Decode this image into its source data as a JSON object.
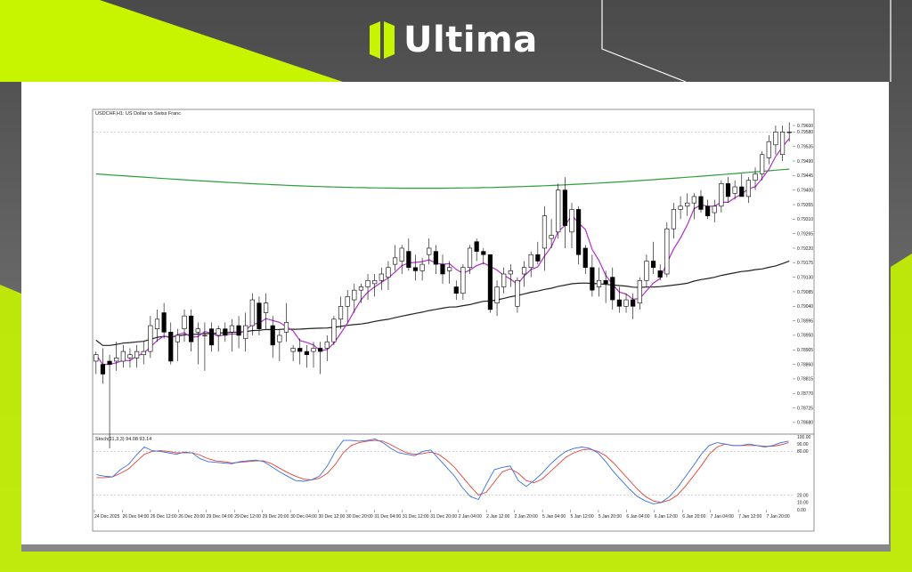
{
  "brand": {
    "name": "Ultima",
    "accent_color": "#c7f500",
    "logo_icon": "ultima-logo-icon"
  },
  "chart_data": {
    "type": "candlestick",
    "title": "USDCHF,H1: US Dollar vs Swiss Franc",
    "symbol": "USDCHF,H1",
    "price_labels": [
      "0.79600",
      "0.79580",
      "0.79535",
      "0.79490",
      "0.79445",
      "0.79400",
      "0.79355",
      "0.79310",
      "0.79265",
      "0.79220",
      "0.79175",
      "0.79130",
      "0.79085",
      "0.79040",
      "0.78995",
      "0.78950",
      "0.78905",
      "0.78860",
      "0.78815",
      "0.78770",
      "0.78725",
      "0.78680"
    ],
    "price_ylim": [
      0.78655,
      0.79625
    ],
    "current_price": "0.79580",
    "time_labels": [
      "24 Dec 2025",
      "26 Dec 04:00",
      "26 Dec 12:00",
      "26 Dec 20:00",
      "29 Dec 04:00",
      "29 Dec 12:00",
      "29 Dec 20:00",
      "30 Dec 04:00",
      "30 Dec 12:00",
      "30 Dec 20:00",
      "31 Dec 04:00",
      "31 Dec 12:00",
      "31 Dec 20:00",
      "2 Jan 04:00",
      "2 Jan 12:00",
      "2 Jan 20:00",
      "5 Jan 04:00",
      "5 Jan 12:00",
      "5 Jan 20:00",
      "6 Jan 04:00",
      "6 Jan 12:00",
      "6 Jan 20:00",
      "7 Jan 04:00",
      "7 Jan 12:00",
      "7 Jan 20:00"
    ],
    "candles": [
      {
        "o": 0.7887,
        "h": 0.789,
        "l": 0.7883,
        "c": 0.7889
      },
      {
        "o": 0.7886,
        "h": 0.7891,
        "l": 0.788,
        "c": 0.7883
      },
      {
        "o": 0.7887,
        "h": 0.7889,
        "l": 0.786,
        "c": 0.7886
      },
      {
        "o": 0.7887,
        "h": 0.7893,
        "l": 0.7884,
        "c": 0.7888
      },
      {
        "o": 0.7887,
        "h": 0.7892,
        "l": 0.7885,
        "c": 0.789
      },
      {
        "o": 0.7888,
        "h": 0.7891,
        "l": 0.7885,
        "c": 0.7889
      },
      {
        "o": 0.7888,
        "h": 0.7892,
        "l": 0.7885,
        "c": 0.789
      },
      {
        "o": 0.7889,
        "h": 0.7893,
        "l": 0.7886,
        "c": 0.789
      },
      {
        "o": 0.789,
        "h": 0.7901,
        "l": 0.7888,
        "c": 0.7898
      },
      {
        "o": 0.7897,
        "h": 0.7903,
        "l": 0.7893,
        "c": 0.79
      },
      {
        "o": 0.7902,
        "h": 0.7905,
        "l": 0.7894,
        "c": 0.7896
      },
      {
        "o": 0.7896,
        "h": 0.7899,
        "l": 0.7886,
        "c": 0.7887
      },
      {
        "o": 0.7893,
        "h": 0.7897,
        "l": 0.7887,
        "c": 0.7895
      },
      {
        "o": 0.7897,
        "h": 0.7903,
        "l": 0.7893,
        "c": 0.7901
      },
      {
        "o": 0.7901,
        "h": 0.7903,
        "l": 0.789,
        "c": 0.7893
      },
      {
        "o": 0.7896,
        "h": 0.7899,
        "l": 0.7886,
        "c": 0.7897
      },
      {
        "o": 0.7895,
        "h": 0.7899,
        "l": 0.7884,
        "c": 0.7895
      },
      {
        "o": 0.7897,
        "h": 0.7899,
        "l": 0.789,
        "c": 0.7892
      },
      {
        "o": 0.7895,
        "h": 0.7898,
        "l": 0.789,
        "c": 0.7897
      },
      {
        "o": 0.7897,
        "h": 0.7899,
        "l": 0.7893,
        "c": 0.7895
      },
      {
        "o": 0.7896,
        "h": 0.79,
        "l": 0.789,
        "c": 0.7898
      },
      {
        "o": 0.7898,
        "h": 0.7901,
        "l": 0.7891,
        "c": 0.7895
      },
      {
        "o": 0.7894,
        "h": 0.7902,
        "l": 0.789,
        "c": 0.7898
      },
      {
        "o": 0.7898,
        "h": 0.7908,
        "l": 0.7895,
        "c": 0.7906
      },
      {
        "o": 0.7905,
        "h": 0.7907,
        "l": 0.7895,
        "c": 0.7897
      },
      {
        "o": 0.7902,
        "h": 0.7908,
        "l": 0.7897,
        "c": 0.7905
      },
      {
        "o": 0.7898,
        "h": 0.7901,
        "l": 0.7888,
        "c": 0.7892
      },
      {
        "o": 0.7893,
        "h": 0.7897,
        "l": 0.7887,
        "c": 0.7895
      },
      {
        "o": 0.7896,
        "h": 0.7905,
        "l": 0.7893,
        "c": 0.7899
      },
      {
        "o": 0.789,
        "h": 0.7892,
        "l": 0.7887,
        "c": 0.7891
      },
      {
        "o": 0.7891,
        "h": 0.7894,
        "l": 0.7886,
        "c": 0.789
      },
      {
        "o": 0.789,
        "h": 0.7892,
        "l": 0.7885,
        "c": 0.7889
      },
      {
        "o": 0.789,
        "h": 0.7893,
        "l": 0.7885,
        "c": 0.7891
      },
      {
        "o": 0.7891,
        "h": 0.7893,
        "l": 0.7883,
        "c": 0.789
      },
      {
        "o": 0.7891,
        "h": 0.7895,
        "l": 0.7887,
        "c": 0.7893
      },
      {
        "o": 0.7893,
        "h": 0.7901,
        "l": 0.7892,
        "c": 0.79
      },
      {
        "o": 0.79,
        "h": 0.7907,
        "l": 0.7897,
        "c": 0.7904
      },
      {
        "o": 0.7904,
        "h": 0.7909,
        "l": 0.7899,
        "c": 0.7907
      },
      {
        "o": 0.7906,
        "h": 0.7911,
        "l": 0.7902,
        "c": 0.7909
      },
      {
        "o": 0.7909,
        "h": 0.7911,
        "l": 0.7905,
        "c": 0.791
      },
      {
        "o": 0.791,
        "h": 0.7914,
        "l": 0.7906,
        "c": 0.7912
      },
      {
        "o": 0.7911,
        "h": 0.7914,
        "l": 0.7907,
        "c": 0.7912
      },
      {
        "o": 0.7912,
        "h": 0.7916,
        "l": 0.7909,
        "c": 0.7914
      },
      {
        "o": 0.7913,
        "h": 0.7918,
        "l": 0.7909,
        "c": 0.7916
      },
      {
        "o": 0.7917,
        "h": 0.7923,
        "l": 0.7915,
        "c": 0.7919
      },
      {
        "o": 0.7918,
        "h": 0.7923,
        "l": 0.7914,
        "c": 0.7922
      },
      {
        "o": 0.7921,
        "h": 0.7925,
        "l": 0.7915,
        "c": 0.7916
      },
      {
        "o": 0.7916,
        "h": 0.792,
        "l": 0.7912,
        "c": 0.7915
      },
      {
        "o": 0.7915,
        "h": 0.7919,
        "l": 0.7912,
        "c": 0.7917
      },
      {
        "o": 0.792,
        "h": 0.7925,
        "l": 0.7917,
        "c": 0.7922
      },
      {
        "o": 0.7921,
        "h": 0.7923,
        "l": 0.7914,
        "c": 0.7917
      },
      {
        "o": 0.7917,
        "h": 0.792,
        "l": 0.7911,
        "c": 0.7914
      },
      {
        "o": 0.7915,
        "h": 0.7918,
        "l": 0.7911,
        "c": 0.7916
      },
      {
        "o": 0.791,
        "h": 0.7912,
        "l": 0.7906,
        "c": 0.7908
      },
      {
        "o": 0.7908,
        "h": 0.7917,
        "l": 0.7906,
        "c": 0.7916
      },
      {
        "o": 0.7916,
        "h": 0.7923,
        "l": 0.7914,
        "c": 0.7922
      },
      {
        "o": 0.7924,
        "h": 0.7925,
        "l": 0.7918,
        "c": 0.7921
      },
      {
        "o": 0.7921,
        "h": 0.7922,
        "l": 0.7917,
        "c": 0.792
      },
      {
        "o": 0.792,
        "h": 0.792,
        "l": 0.7902,
        "c": 0.7903
      },
      {
        "o": 0.7905,
        "h": 0.7912,
        "l": 0.7901,
        "c": 0.791
      },
      {
        "o": 0.791,
        "h": 0.7916,
        "l": 0.7908,
        "c": 0.7914
      },
      {
        "o": 0.7914,
        "h": 0.7917,
        "l": 0.791,
        "c": 0.7915
      },
      {
        "o": 0.7904,
        "h": 0.7913,
        "l": 0.7902,
        "c": 0.7912
      },
      {
        "o": 0.7914,
        "h": 0.7918,
        "l": 0.791,
        "c": 0.7916
      },
      {
        "o": 0.7916,
        "h": 0.7921,
        "l": 0.7913,
        "c": 0.792
      },
      {
        "o": 0.792,
        "h": 0.7924,
        "l": 0.7917,
        "c": 0.7918
      },
      {
        "o": 0.7922,
        "h": 0.7935,
        "l": 0.7915,
        "c": 0.7932
      },
      {
        "o": 0.7925,
        "h": 0.7931,
        "l": 0.7922,
        "c": 0.7926
      },
      {
        "o": 0.7927,
        "h": 0.7942,
        "l": 0.7925,
        "c": 0.794
      },
      {
        "o": 0.794,
        "h": 0.7944,
        "l": 0.7922,
        "c": 0.7929
      },
      {
        "o": 0.7927,
        "h": 0.7936,
        "l": 0.7922,
        "c": 0.7934
      },
      {
        "o": 0.7934,
        "h": 0.7935,
        "l": 0.7917,
        "c": 0.792
      },
      {
        "o": 0.7922,
        "h": 0.7923,
        "l": 0.7914,
        "c": 0.7916
      },
      {
        "o": 0.7916,
        "h": 0.792,
        "l": 0.7907,
        "c": 0.7909
      },
      {
        "o": 0.791,
        "h": 0.7916,
        "l": 0.7907,
        "c": 0.7912
      },
      {
        "o": 0.7912,
        "h": 0.7915,
        "l": 0.7905,
        "c": 0.7911
      },
      {
        "o": 0.7913,
        "h": 0.7916,
        "l": 0.7903,
        "c": 0.7906
      },
      {
        "o": 0.7906,
        "h": 0.791,
        "l": 0.7902,
        "c": 0.7904
      },
      {
        "o": 0.7904,
        "h": 0.7908,
        "l": 0.7902,
        "c": 0.7906
      },
      {
        "o": 0.7906,
        "h": 0.7908,
        "l": 0.79,
        "c": 0.7904
      },
      {
        "o": 0.7905,
        "h": 0.7913,
        "l": 0.7903,
        "c": 0.7912
      },
      {
        "o": 0.7912,
        "h": 0.792,
        "l": 0.791,
        "c": 0.7918
      },
      {
        "o": 0.7918,
        "h": 0.7924,
        "l": 0.7914,
        "c": 0.7916
      },
      {
        "o": 0.7915,
        "h": 0.7917,
        "l": 0.7912,
        "c": 0.7913
      },
      {
        "o": 0.7914,
        "h": 0.793,
        "l": 0.7913,
        "c": 0.7928
      },
      {
        "o": 0.7928,
        "h": 0.7936,
        "l": 0.7925,
        "c": 0.7934
      },
      {
        "o": 0.7934,
        "h": 0.7938,
        "l": 0.7931,
        "c": 0.7935
      },
      {
        "o": 0.7935,
        "h": 0.7939,
        "l": 0.7932,
        "c": 0.7936
      },
      {
        "o": 0.7936,
        "h": 0.7939,
        "l": 0.7931,
        "c": 0.7938
      },
      {
        "o": 0.7938,
        "h": 0.794,
        "l": 0.7933,
        "c": 0.7934
      },
      {
        "o": 0.7935,
        "h": 0.7937,
        "l": 0.7931,
        "c": 0.7932
      },
      {
        "o": 0.7933,
        "h": 0.7937,
        "l": 0.793,
        "c": 0.7935
      },
      {
        "o": 0.7935,
        "h": 0.7943,
        "l": 0.7933,
        "c": 0.7942
      },
      {
        "o": 0.7942,
        "h": 0.7944,
        "l": 0.7936,
        "c": 0.7938
      },
      {
        "o": 0.7939,
        "h": 0.7943,
        "l": 0.7937,
        "c": 0.7941
      },
      {
        "o": 0.7941,
        "h": 0.7945,
        "l": 0.7938,
        "c": 0.7938
      },
      {
        "o": 0.7938,
        "h": 0.7944,
        "l": 0.7936,
        "c": 0.7943
      },
      {
        "o": 0.7943,
        "h": 0.7947,
        "l": 0.794,
        "c": 0.7945
      },
      {
        "o": 0.7945,
        "h": 0.7952,
        "l": 0.7943,
        "c": 0.7951
      },
      {
        "o": 0.795,
        "h": 0.7957,
        "l": 0.7948,
        "c": 0.7955
      },
      {
        "o": 0.7954,
        "h": 0.796,
        "l": 0.7951,
        "c": 0.7958
      },
      {
        "o": 0.7951,
        "h": 0.796,
        "l": 0.7949,
        "c": 0.7958
      },
      {
        "o": 0.7958,
        "h": 0.7961,
        "l": 0.7955,
        "c": 0.7958
      }
    ],
    "stochastic": {
      "label": "Stoch(11,3,3) 94.08 93.14",
      "levels": [
        "100.00",
        "90.00",
        "80.00",
        "20.00",
        "10.00",
        "0.00"
      ],
      "main": [
        48,
        46,
        45,
        55,
        62,
        75,
        86,
        81,
        80,
        78,
        76,
        79,
        78,
        70,
        66,
        65,
        64,
        63,
        66,
        67,
        68,
        66,
        59,
        52,
        46,
        40,
        39,
        41,
        46,
        60,
        80,
        95,
        95,
        94,
        95,
        97,
        92,
        84,
        78,
        76,
        74,
        80,
        82,
        70,
        58,
        46,
        30,
        18,
        14,
        35,
        55,
        58,
        60,
        40,
        32,
        40,
        50,
        62,
        72,
        80,
        84,
        86,
        84,
        78,
        66,
        52,
        40,
        28,
        18,
        12,
        8,
        10,
        18,
        30,
        45,
        60,
        76,
        88,
        92,
        90,
        88,
        88,
        90,
        88,
        86,
        88,
        92,
        94
      ],
      "signal": [
        44,
        44,
        45,
        50,
        56,
        66,
        76,
        80,
        81,
        80,
        78,
        78,
        78,
        75,
        70,
        67,
        66,
        64,
        65,
        66,
        67,
        67,
        63,
        57,
        51,
        46,
        42,
        41,
        43,
        50,
        62,
        78,
        88,
        92,
        94,
        95,
        94,
        89,
        83,
        78,
        76,
        77,
        79,
        76,
        68,
        58,
        45,
        32,
        20,
        24,
        38,
        52,
        56,
        50,
        40,
        37,
        42,
        52,
        62,
        72,
        78,
        82,
        83,
        80,
        74,
        64,
        52,
        40,
        28,
        18,
        12,
        10,
        13,
        20,
        32,
        46,
        60,
        76,
        86,
        90,
        88,
        88,
        88,
        88,
        87,
        87,
        89,
        92
      ]
    }
  }
}
